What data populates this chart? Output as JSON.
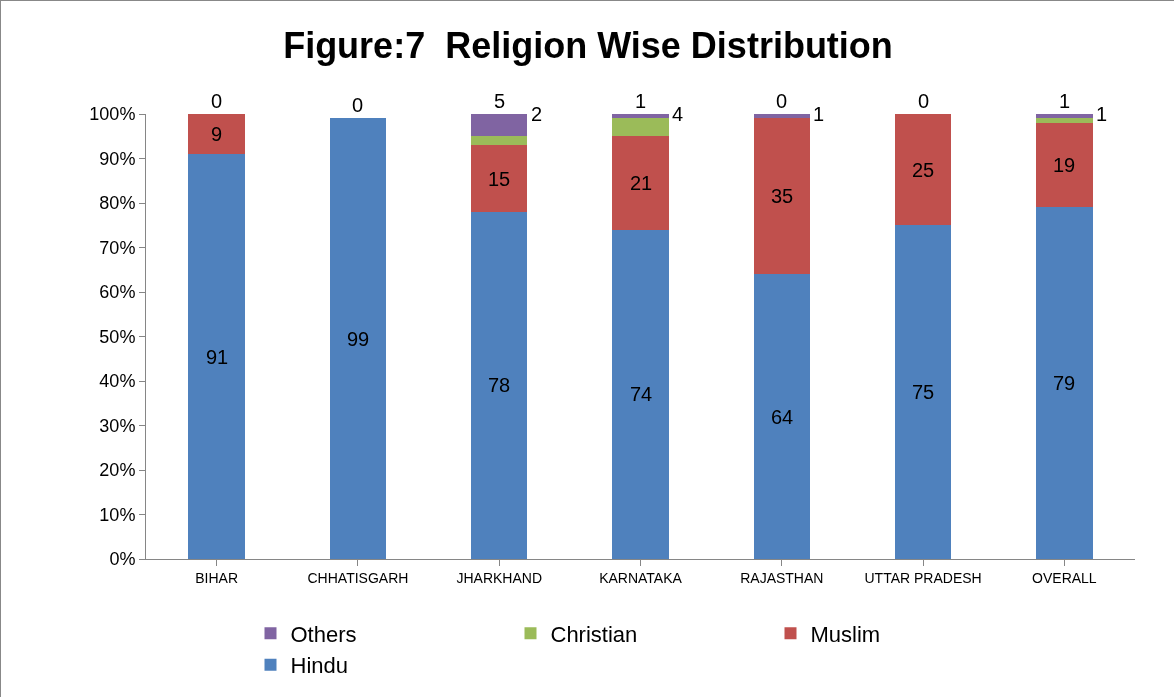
{
  "chart_data": {
    "type": "bar",
    "title": "Figure:7  Religion Wise Distribution",
    "stacked": true,
    "grid": false,
    "legend": "bottom",
    "categories": [
      "BIHAR",
      "CHHATISGARH",
      "JHARKHAND",
      "KARNATAKA",
      "RAJASTHAN",
      "UTTAR PRADESH",
      "OVERALL"
    ],
    "series": [
      {
        "name": "Hindu",
        "color": "#4f81bd",
        "values": [
          91,
          99,
          78,
          74,
          64,
          75,
          79
        ],
        "value_labels": [
          "91",
          "99",
          "78",
          "74",
          "64",
          "75",
          "79"
        ]
      },
      {
        "name": "Muslim",
        "color": "#c0504d",
        "values": [
          9,
          0,
          15,
          21,
          35,
          25,
          19
        ],
        "value_labels": [
          "9",
          null,
          "15",
          "21",
          "35",
          "25",
          "19"
        ]
      },
      {
        "name": "Christian",
        "color": "#9bbb59",
        "values": [
          0,
          0,
          2,
          4,
          0,
          0,
          1
        ],
        "value_labels": [
          null,
          null,
          "2",
          "4",
          "0",
          null,
          "1"
        ]
      },
      {
        "name": "Others",
        "color": "#8064a2",
        "values": [
          0,
          0,
          5,
          1,
          1,
          0,
          1
        ],
        "value_labels": [
          "0",
          "0",
          "5",
          "1",
          "1",
          "0",
          "1"
        ]
      }
    ],
    "ylim": [
      0,
      100
    ],
    "yticks": [
      {
        "value": 0,
        "label": "0%"
      },
      {
        "value": 10,
        "label": "10%"
      },
      {
        "value": 20,
        "label": "20%"
      },
      {
        "value": 30,
        "label": "30%"
      },
      {
        "value": 40,
        "label": "40%"
      },
      {
        "value": 50,
        "label": "50%"
      },
      {
        "value": 60,
        "label": "60%"
      },
      {
        "value": 70,
        "label": "70%"
      },
      {
        "value": 80,
        "label": "80%"
      },
      {
        "value": 90,
        "label": "90%"
      },
      {
        "value": 100,
        "label": "100%"
      }
    ]
  }
}
